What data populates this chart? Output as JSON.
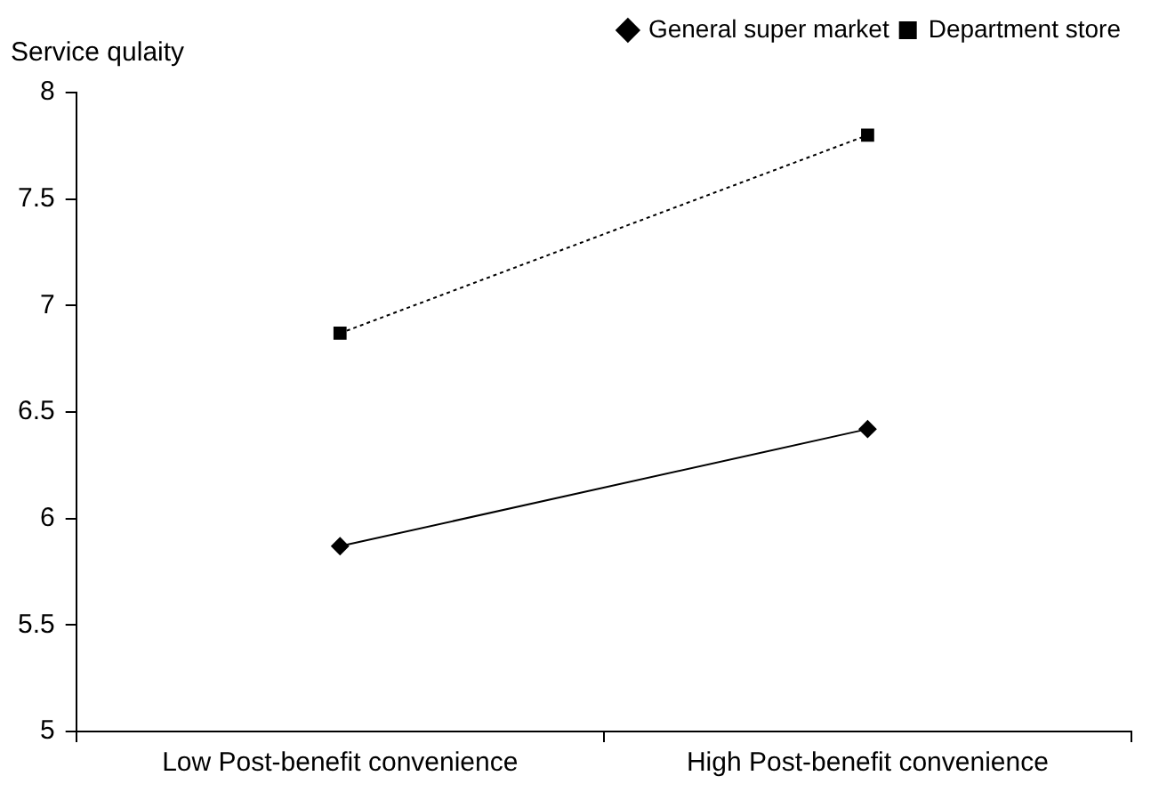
{
  "chart_data": {
    "type": "line",
    "ylabel": "Service qulaity",
    "categories": [
      "Low Post-benefit convenience",
      "High Post-benefit convenience"
    ],
    "series": [
      {
        "name": "General super market",
        "color": "#000000",
        "values": [
          5.87,
          6.42
        ],
        "marker": "diamond",
        "line_style": "solid"
      },
      {
        "name": "Department store",
        "color": "#000000",
        "values": [
          6.87,
          7.8
        ],
        "marker": "square",
        "line_style": "dotted"
      }
    ],
    "ylim": [
      5,
      8
    ],
    "yticks": [
      5,
      5.5,
      6,
      6.5,
      7,
      7.5,
      8
    ],
    "grid": false,
    "legend": "top right"
  }
}
